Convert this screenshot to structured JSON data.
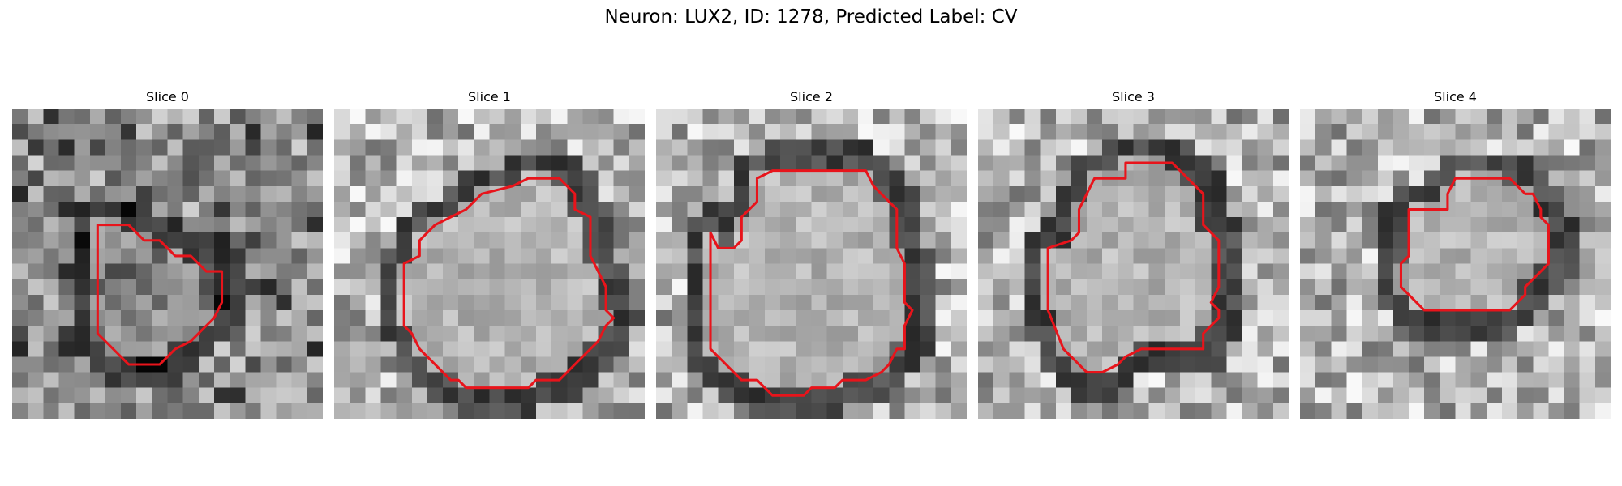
{
  "figure": {
    "title": "Neuron: LUX2, ID: 1278, Predicted Label: CV",
    "contour_color": "#e8141b"
  },
  "slices": [
    {
      "label": "Slice 0",
      "contour": [
        [
          5.5,
          7.5
        ],
        [
          7.5,
          7.5
        ],
        [
          8.5,
          8.5
        ],
        [
          9.5,
          8.5
        ],
        [
          10.5,
          9.5
        ],
        [
          11.5,
          9.5
        ],
        [
          12.5,
          10.5
        ],
        [
          13.5,
          10.5
        ],
        [
          13.5,
          12.5
        ],
        [
          13,
          13.5
        ],
        [
          12.5,
          14
        ],
        [
          11.5,
          15
        ],
        [
          10.5,
          15.5
        ],
        [
          9.5,
          16.5
        ],
        [
          7.5,
          16.5
        ],
        [
          6.5,
          15.5
        ],
        [
          5.5,
          14.5
        ]
      ]
    },
    {
      "label": "Slice 1",
      "contour": [
        [
          5.5,
          9.5
        ],
        [
          5.5,
          8.5
        ],
        [
          6.5,
          7.5
        ],
        [
          7.5,
          7
        ],
        [
          8.5,
          6.5
        ],
        [
          9.5,
          5.5
        ],
        [
          11.5,
          5
        ],
        [
          12.5,
          4.5
        ],
        [
          14.5,
          4.5
        ],
        [
          15.5,
          5.5
        ],
        [
          15.5,
          6.5
        ],
        [
          16.5,
          7
        ],
        [
          16.5,
          9.5
        ],
        [
          17,
          10.5
        ],
        [
          17.5,
          11.5
        ],
        [
          17.5,
          13
        ],
        [
          18,
          13.5
        ],
        [
          17.5,
          14
        ],
        [
          17,
          15
        ],
        [
          16.5,
          15.5
        ],
        [
          15.5,
          16.5
        ],
        [
          14.5,
          17.5
        ],
        [
          13,
          17.5
        ],
        [
          12.5,
          18
        ],
        [
          8.5,
          18
        ],
        [
          8,
          17.5
        ],
        [
          7.5,
          17.5
        ],
        [
          6.5,
          16.5
        ],
        [
          5.5,
          15.5
        ],
        [
          5,
          14.5
        ],
        [
          4.5,
          14
        ],
        [
          4.5,
          10
        ]
      ]
    },
    {
      "label": "Slice 2",
      "contour": [
        [
          3.5,
          8
        ],
        [
          4,
          9
        ],
        [
          5,
          9
        ],
        [
          5.5,
          8.5
        ],
        [
          5.5,
          7
        ],
        [
          6.5,
          6
        ],
        [
          6.5,
          4.5
        ],
        [
          7.5,
          4
        ],
        [
          13.5,
          4
        ],
        [
          14,
          5
        ],
        [
          14.5,
          5.5
        ],
        [
          15,
          6
        ],
        [
          15.5,
          6.5
        ],
        [
          15.5,
          9
        ],
        [
          16,
          10
        ],
        [
          16,
          12.5
        ],
        [
          16.5,
          13
        ],
        [
          16,
          14
        ],
        [
          16,
          15.5
        ],
        [
          15.5,
          15.5
        ],
        [
          15,
          16.5
        ],
        [
          14.5,
          17
        ],
        [
          13.5,
          17.5
        ],
        [
          13,
          17.5
        ],
        [
          12,
          17.5
        ],
        [
          11.5,
          18
        ],
        [
          10,
          18
        ],
        [
          9.5,
          18.5
        ],
        [
          7.5,
          18.5
        ],
        [
          7,
          18
        ],
        [
          6.5,
          17.5
        ],
        [
          5.5,
          17.5
        ],
        [
          4.5,
          16.5
        ],
        [
          3.5,
          15.5
        ],
        [
          3.5,
          14.5
        ]
      ]
    },
    {
      "label": "Slice 3",
      "contour": [
        [
          6,
          8.5
        ],
        [
          6.5,
          8
        ],
        [
          6.5,
          6.5
        ],
        [
          7,
          5.5
        ],
        [
          7.5,
          4.5
        ],
        [
          9.5,
          4.5
        ],
        [
          9.5,
          3.5
        ],
        [
          12.5,
          3.5
        ],
        [
          13.5,
          4.5
        ],
        [
          14.5,
          5.5
        ],
        [
          14.5,
          7.5
        ],
        [
          15.5,
          8.5
        ],
        [
          15.5,
          11.5
        ],
        [
          15,
          12.5
        ],
        [
          15.5,
          13
        ],
        [
          15.5,
          13.5
        ],
        [
          15,
          14
        ],
        [
          14.5,
          14.5
        ],
        [
          14.5,
          15.5
        ],
        [
          10.5,
          15.5
        ],
        [
          9.5,
          16
        ],
        [
          9,
          16.5
        ],
        [
          8,
          17
        ],
        [
          7,
          17
        ],
        [
          5.5,
          15.5
        ],
        [
          4.5,
          13
        ],
        [
          4.5,
          9
        ]
      ]
    },
    {
      "label": "Slice 4",
      "contour": [
        [
          7,
          6.5
        ],
        [
          9.5,
          6.5
        ],
        [
          9.5,
          5.5
        ],
        [
          10,
          4.5
        ],
        [
          13.5,
          4.5
        ],
        [
          14.5,
          5.5
        ],
        [
          15,
          5.5
        ],
        [
          15.5,
          6.5
        ],
        [
          15.5,
          7
        ],
        [
          16,
          7.5
        ],
        [
          16,
          10
        ],
        [
          15.5,
          10.5
        ],
        [
          15,
          11
        ],
        [
          14.5,
          11.5
        ],
        [
          14.5,
          12
        ],
        [
          13.5,
          13
        ],
        [
          8,
          13
        ],
        [
          7.5,
          12.5
        ],
        [
          7,
          12
        ],
        [
          6.5,
          11.5
        ],
        [
          6.5,
          10
        ],
        [
          7,
          9.5
        ],
        [
          7,
          7.5
        ]
      ]
    }
  ]
}
